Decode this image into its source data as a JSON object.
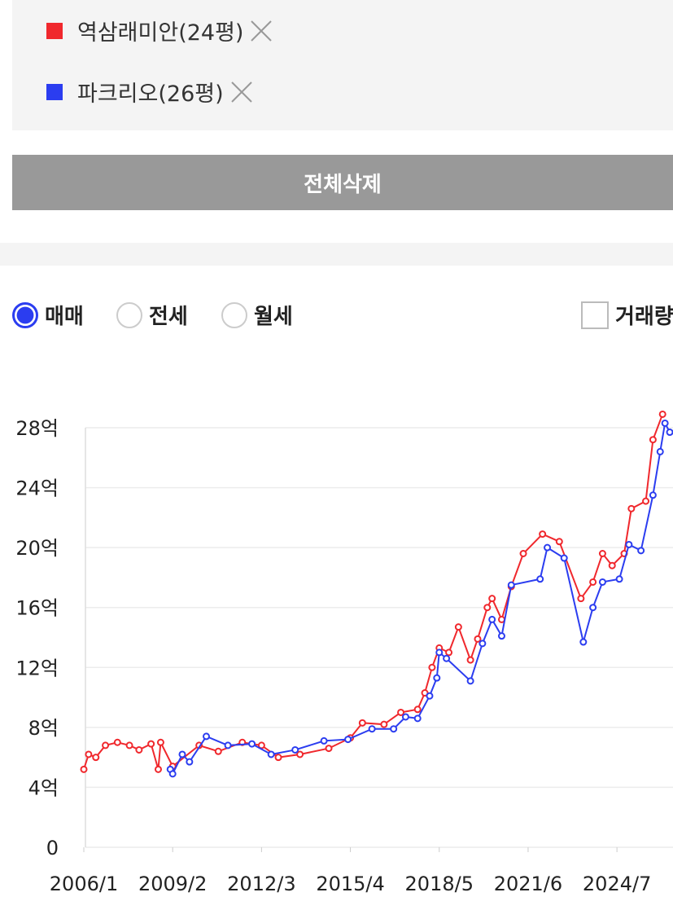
{
  "ui": {
    "delete_all_button": "전체삭제",
    "trade_types": [
      "매매",
      "전세",
      "월세"
    ],
    "volume_checkbox": "거래량"
  },
  "chart_data": {
    "type": "line",
    "ylim": [
      0,
      28
    ],
    "yticks": [
      0,
      {
        "value": 4,
        "label": "4억"
      },
      {
        "value": 8,
        "label": "8억"
      },
      {
        "value": 12,
        "label": "12억"
      },
      {
        "value": 16,
        "label": "16억"
      },
      {
        "value": 20,
        "label": "20억"
      },
      {
        "value": 24,
        "label": "24억"
      },
      {
        "value": 28,
        "label": "28억"
      }
    ],
    "xlim": [
      "2006/1",
      "2026/6"
    ],
    "xticks": [
      "2006/1",
      "2009/2",
      "2012/3",
      "2015/4",
      "2018/5",
      "2021/6",
      "2024/7"
    ],
    "grid": true,
    "series": [
      {
        "name": "역삼래미안(24평)",
        "color": "#f0282d",
        "x": [
          "2006/1",
          "2006/3",
          "2006/6",
          "2006/10",
          "2007/3",
          "2007/8",
          "2007/12",
          "2008/5",
          "2008/8",
          "2008/9",
          "2009/2",
          "2010/1",
          "2010/9",
          "2011/7",
          "2012/3",
          "2012/10",
          "2013/7",
          "2014/7",
          "2015/4",
          "2015/9",
          "2016/6",
          "2017/1",
          "2017/8",
          "2017/11",
          "2018/2",
          "2018/5",
          "2018/9",
          "2019/1",
          "2019/6",
          "2019/9",
          "2020/1",
          "2020/3",
          "2020/7",
          "2020/11",
          "2021/4",
          "2021/12",
          "2022/7",
          "2023/4",
          "2023/9",
          "2024/1",
          "2024/5",
          "2024/10",
          "2025/1",
          "2025/7",
          "2025/10",
          "2026/2"
        ],
        "values": [
          5.2,
          6.2,
          6.0,
          6.8,
          7.0,
          6.8,
          6.5,
          6.9,
          5.2,
          7.0,
          5.4,
          6.8,
          6.4,
          7.0,
          6.8,
          6.0,
          6.2,
          6.6,
          7.3,
          8.3,
          8.2,
          9.0,
          9.2,
          10.3,
          12.0,
          13.3,
          13.0,
          14.7,
          12.5,
          13.9,
          16.0,
          16.6,
          15.2,
          17.4,
          19.6,
          20.9,
          20.4,
          16.6,
          17.7,
          19.6,
          18.8,
          19.6,
          22.6,
          23.1,
          27.2,
          28.9
        ]
      },
      {
        "name": "파크리오(26평)",
        "color": "#2b3df0",
        "x": [
          "2009/1",
          "2009/2",
          "2009/6",
          "2009/9",
          "2010/4",
          "2011/1",
          "2011/11",
          "2012/7",
          "2013/5",
          "2014/5",
          "2015/3",
          "2016/1",
          "2016/10",
          "2017/3",
          "2017/8",
          "2018/1",
          "2018/4",
          "2018/5",
          "2018/8",
          "2019/6",
          "2019/11",
          "2020/3",
          "2020/7",
          "2020/11",
          "2021/11",
          "2022/2",
          "2022/9",
          "2023/5",
          "2023/9",
          "2024/1",
          "2024/8",
          "2024/12",
          "2025/5",
          "2025/10",
          "2026/1",
          "2026/3",
          "2026/5"
        ],
        "values": [
          5.2,
          4.9,
          6.2,
          5.7,
          7.4,
          6.8,
          6.9,
          6.2,
          6.5,
          7.1,
          7.2,
          7.9,
          7.9,
          8.7,
          8.6,
          10.1,
          11.3,
          13.0,
          12.6,
          11.1,
          13.6,
          15.2,
          14.1,
          17.5,
          17.9,
          20.0,
          19.3,
          13.7,
          16.0,
          17.7,
          17.9,
          20.2,
          19.8,
          23.5,
          26.4,
          28.3,
          27.7
        ]
      }
    ]
  }
}
